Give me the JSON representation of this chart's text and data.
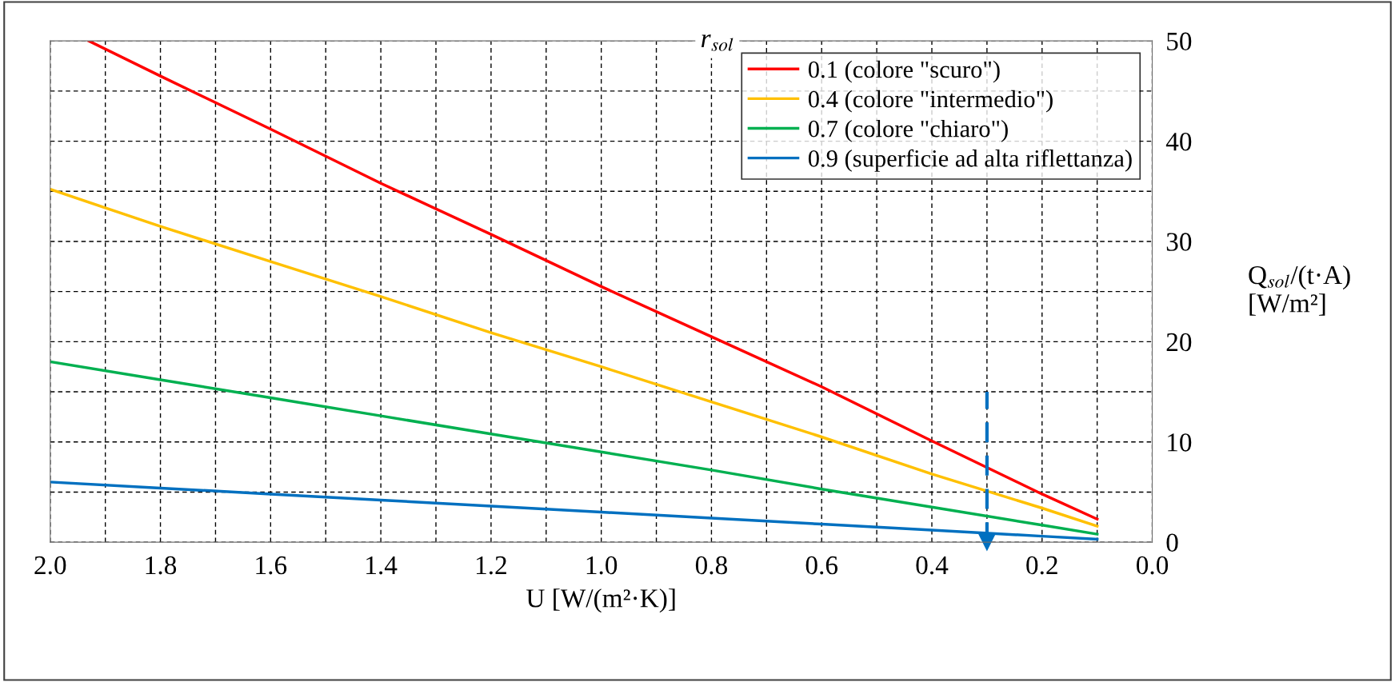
{
  "chart_data": {
    "type": "line",
    "x": [
      2.0,
      1.8,
      1.6,
      1.4,
      1.2,
      1.0,
      0.8,
      0.6,
      0.4,
      0.2,
      0.1
    ],
    "series": [
      {
        "name": "0.1 (colore \"scuro\")",
        "color": "#ff0000",
        "x": [
          1.93,
          1.8,
          1.6,
          1.4,
          1.2,
          1.0,
          0.8,
          0.6,
          0.4,
          0.2,
          0.1
        ],
        "values": [
          50,
          46.5,
          41.2,
          35.8,
          30.7,
          25.5,
          20.5,
          15.5,
          10.1,
          4.8,
          2.3
        ]
      },
      {
        "name": "0.4 (colore \"intermedio\")",
        "color": "#ffc000",
        "values": [
          35.2,
          31.5,
          28.0,
          24.5,
          20.9,
          17.5,
          14.0,
          10.5,
          6.8,
          3.4,
          1.6
        ]
      },
      {
        "name": "0.7 (colore \"chiaro\")",
        "color": "#00b050",
        "values": [
          18.0,
          16.2,
          14.4,
          12.6,
          10.8,
          9.0,
          7.2,
          5.3,
          3.5,
          1.7,
          0.8
        ]
      },
      {
        "name": "0.9 (superficie ad alta riflettanza)",
        "color": "#0070c0",
        "values": [
          6.0,
          5.4,
          4.8,
          4.2,
          3.6,
          3.0,
          2.4,
          1.8,
          1.2,
          0.6,
          0.3
        ]
      }
    ],
    "xlabel": "U [W/(m²·K)]",
    "ylabel": "Q$_{sol}$/(t·A)\n[W/m²]",
    "legend_title": "r$_{sol}$",
    "legend": "top right",
    "grid": true,
    "xlim": [
      2.0,
      0.0
    ],
    "xticks": [
      {
        "value": 2.0,
        "label": "2.0"
      },
      {
        "value": 1.9,
        "label": null
      },
      {
        "value": 1.8,
        "label": "1.8"
      },
      {
        "value": 1.7,
        "label": null
      },
      {
        "value": 1.6,
        "label": "1.6"
      },
      {
        "value": 1.5,
        "label": null
      },
      {
        "value": 1.4,
        "label": "1.4"
      },
      {
        "value": 1.3,
        "label": null
      },
      {
        "value": 1.2,
        "label": "1.2"
      },
      {
        "value": 1.1,
        "label": null
      },
      {
        "value": 1.0,
        "label": "1.0"
      },
      {
        "value": 0.9,
        "label": null
      },
      {
        "value": 0.8,
        "label": "0.8"
      },
      {
        "value": 0.7,
        "label": null
      },
      {
        "value": 0.6,
        "label": "0.6"
      },
      {
        "value": 0.5,
        "label": null
      },
      {
        "value": 0.4,
        "label": "0.4"
      },
      {
        "value": 0.3,
        "label": null
      },
      {
        "value": 0.2,
        "label": "0.2"
      },
      {
        "value": 0.1,
        "label": null
      },
      {
        "value": 0.0,
        "label": "0.0"
      }
    ],
    "ylim": [
      0,
      50
    ],
    "yticks": [
      0,
      {
        "value": 5,
        "label": null
      },
      10,
      {
        "value": 15,
        "label": null
      },
      20,
      {
        "value": 25,
        "label": null
      },
      30,
      {
        "value": 35,
        "label": null
      },
      40,
      {
        "value": 45,
        "label": null
      },
      50
    ],
    "ref_lines": [
      {
        "axis": "x",
        "value": 0.3,
        "color": "#0070c0",
        "line_style": "dashed"
      }
    ]
  }
}
